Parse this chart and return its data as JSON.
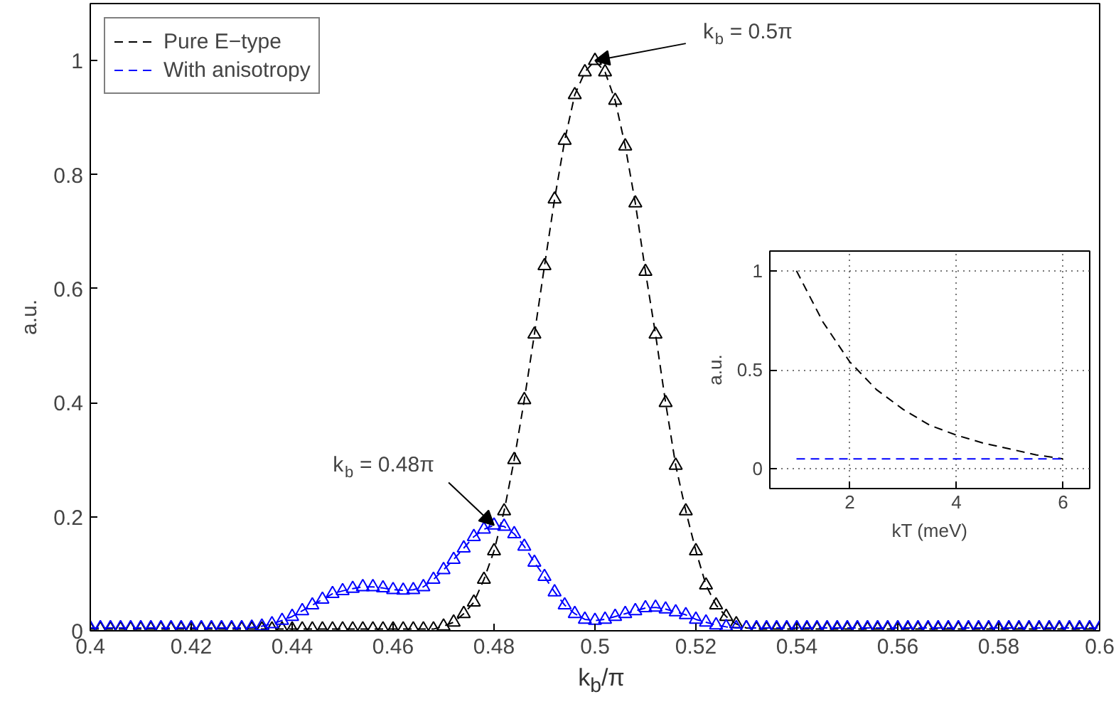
{
  "chart_data": [
    {
      "type": "line",
      "xlabel": "k$_{b}$/π",
      "ylabel": "a.u.",
      "x": [
        0.4,
        0.402,
        0.404,
        0.406,
        0.408,
        0.41,
        0.412,
        0.414,
        0.416,
        0.418,
        0.42,
        0.422,
        0.424,
        0.426,
        0.428,
        0.43,
        0.432,
        0.434,
        0.436,
        0.438,
        0.44,
        0.442,
        0.444,
        0.446,
        0.448,
        0.45,
        0.452,
        0.454,
        0.456,
        0.458,
        0.46,
        0.462,
        0.464,
        0.466,
        0.468,
        0.47,
        0.472,
        0.474,
        0.476,
        0.478,
        0.48,
        0.482,
        0.484,
        0.486,
        0.488,
        0.49,
        0.492,
        0.494,
        0.496,
        0.498,
        0.5,
        0.502,
        0.504,
        0.506,
        0.508,
        0.51,
        0.512,
        0.514,
        0.516,
        0.518,
        0.52,
        0.522,
        0.524,
        0.526,
        0.528,
        0.53,
        0.532,
        0.534,
        0.536,
        0.538,
        0.54,
        0.542,
        0.544,
        0.546,
        0.548,
        0.55,
        0.552,
        0.554,
        0.556,
        0.558,
        0.56,
        0.562,
        0.564,
        0.566,
        0.568,
        0.57,
        0.572,
        0.574,
        0.576,
        0.578,
        0.58,
        0.582,
        0.584,
        0.586,
        0.588,
        0.59,
        0.592,
        0.594,
        0.596,
        0.598,
        0.6
      ],
      "series": [
        {
          "name": "Pure E−type",
          "color": "#000000",
          "values": [
            0.003,
            0.003,
            0.003,
            0.003,
            0.003,
            0.003,
            0.003,
            0.003,
            0.003,
            0.003,
            0.003,
            0.003,
            0.003,
            0.003,
            0.003,
            0.003,
            0.003,
            0.003,
            0.003,
            0.003,
            0.003,
            0.003,
            0.003,
            0.003,
            0.003,
            0.003,
            0.003,
            0.003,
            0.003,
            0.003,
            0.003,
            0.003,
            0.003,
            0.003,
            0.003,
            0.008,
            0.015,
            0.03,
            0.05,
            0.09,
            0.14,
            0.21,
            0.3,
            0.405,
            0.52,
            0.64,
            0.757,
            0.86,
            0.94,
            0.98,
            1.0,
            0.98,
            0.93,
            0.85,
            0.75,
            0.63,
            0.52,
            0.4,
            0.29,
            0.21,
            0.14,
            0.08,
            0.045,
            0.025,
            0.012,
            0.005,
            0.003,
            0.003,
            0.003,
            0.003,
            0.003,
            0.003,
            0.003,
            0.003,
            0.003,
            0.003,
            0.003,
            0.003,
            0.003,
            0.003,
            0.003,
            0.003,
            0.003,
            0.003,
            0.003,
            0.003,
            0.003,
            0.003,
            0.003,
            0.003,
            0.003,
            0.003,
            0.003,
            0.003,
            0.003,
            0.003,
            0.003,
            0.003,
            0.003,
            0.003,
            0.003
          ]
        },
        {
          "name": "With anisotropy",
          "color": "#0000ff",
          "values": [
            0.005,
            0.005,
            0.005,
            0.005,
            0.005,
            0.005,
            0.005,
            0.005,
            0.005,
            0.005,
            0.005,
            0.005,
            0.005,
            0.005,
            0.005,
            0.005,
            0.006,
            0.008,
            0.012,
            0.018,
            0.025,
            0.035,
            0.045,
            0.055,
            0.065,
            0.07,
            0.074,
            0.077,
            0.077,
            0.075,
            0.072,
            0.071,
            0.072,
            0.077,
            0.09,
            0.107,
            0.125,
            0.145,
            0.165,
            0.178,
            0.185,
            0.183,
            0.17,
            0.148,
            0.12,
            0.095,
            0.068,
            0.045,
            0.03,
            0.02,
            0.018,
            0.02,
            0.025,
            0.03,
            0.035,
            0.04,
            0.041,
            0.038,
            0.033,
            0.028,
            0.02,
            0.015,
            0.01,
            0.007,
            0.005,
            0.005,
            0.005,
            0.005,
            0.005,
            0.005,
            0.005,
            0.005,
            0.005,
            0.005,
            0.005,
            0.005,
            0.005,
            0.005,
            0.005,
            0.005,
            0.005,
            0.005,
            0.005,
            0.005,
            0.005,
            0.005,
            0.005,
            0.005,
            0.005,
            0.005,
            0.005,
            0.005,
            0.005,
            0.005,
            0.005,
            0.005,
            0.005,
            0.005,
            0.005,
            0.005,
            0.005
          ]
        }
      ],
      "xlim": [
        0.4,
        0.6
      ],
      "xticks": [
        0.4,
        0.42,
        0.44,
        0.46,
        0.48,
        0.5,
        0.52,
        0.54,
        0.56,
        0.58,
        0.6
      ],
      "ylim": [
        0,
        1.1
      ],
      "yticks": [
        0,
        0.2,
        0.4,
        0.6,
        0.8,
        1
      ],
      "marker": "triangle",
      "line_style": "dashed",
      "legend": "top left",
      "annotations": [
        {
          "text": "k$_{b}$ = 0.5π",
          "x": 0.5,
          "y": 1.0
        },
        {
          "text": "k$_{b}$ = 0.48π",
          "x": 0.48,
          "y": 0.185
        }
      ]
    },
    {
      "type": "line",
      "xlabel": "kT (meV)",
      "ylabel": "a.u.",
      "x": [
        1,
        1.5,
        2,
        2.5,
        3,
        3.5,
        4,
        4.5,
        5,
        5.5,
        6
      ],
      "series": [
        {
          "color": "#000000",
          "values": [
            1,
            0.74,
            0.54,
            0.4,
            0.3,
            0.22,
            0.17,
            0.13,
            0.1,
            0.07,
            0.05
          ]
        },
        {
          "color": "#0000ff",
          "values": [
            0.05,
            0.05,
            0.05,
            0.05,
            0.05,
            0.05,
            0.05,
            0.05,
            0.05,
            0.05,
            0.05
          ]
        }
      ],
      "xlim": [
        0.5,
        6.5
      ],
      "xticks": [
        2,
        4,
        6
      ],
      "ylim": [
        -0.1,
        1.1
      ],
      "yticks": [
        0,
        0.5,
        1
      ],
      "grid": true,
      "line_style": "dashed"
    }
  ]
}
